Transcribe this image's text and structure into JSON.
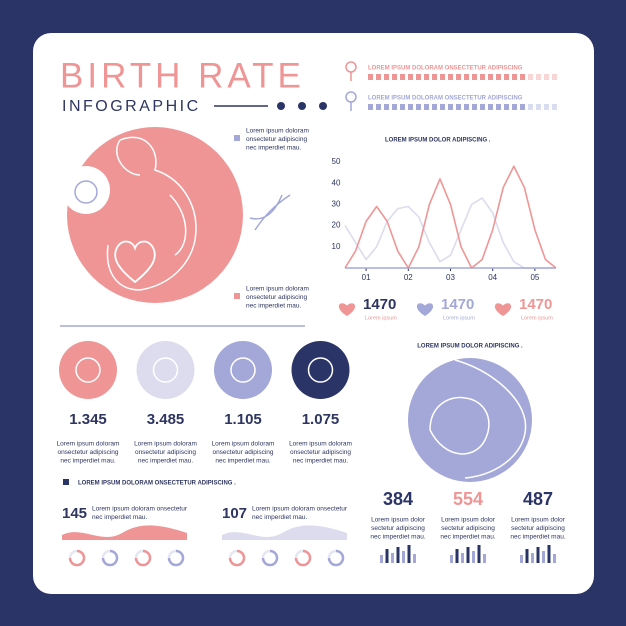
{
  "header": {
    "title": "BIRTH RATE",
    "subtitle": "INFOGRAPHIC"
  },
  "legend": [
    {
      "text": "LOREM IPSUM DOLORAM ONSECTETUR ADIPISCING",
      "color": "#ef9595"
    },
    {
      "text": "LOREM IPSUM DOLORAM ONSECTETUR ADIPISCING",
      "color": "#a3a8d8"
    }
  ],
  "notes": [
    {
      "lines": [
        "Lorem ipsum doloram",
        "onsectetur adipiscing",
        "nec imperdiet mau."
      ],
      "color": "#a3a8d8"
    },
    {
      "lines": [
        "Lorem ipsum doloram",
        "onsectetur adipiscing",
        "nec imperdiet mau."
      ],
      "color": "#ef9595"
    }
  ],
  "chart_data": {
    "type": "line",
    "title": "LOREM IPSUM DOLOR ADIPISCING .",
    "x": [
      0.5,
      0.75,
      1.0,
      1.25,
      1.5,
      1.75,
      2.0,
      2.25,
      2.5,
      2.75,
      3.0,
      3.25,
      3.5,
      3.75,
      4.0,
      4.25,
      4.5,
      4.75,
      5.0,
      5.25,
      5.5
    ],
    "series": [
      {
        "color": "#dcdcee",
        "values": [
          20,
          12,
          4,
          10,
          22,
          28,
          29,
          24,
          12,
          3,
          6,
          18,
          30,
          33,
          26,
          12,
          3,
          0,
          0,
          0,
          0
        ]
      },
      {
        "color": "#ef9595",
        "values": [
          0,
          8,
          22,
          29,
          22,
          8,
          0,
          10,
          30,
          42,
          30,
          10,
          0,
          4,
          18,
          38,
          48,
          38,
          18,
          4,
          0
        ]
      }
    ],
    "xlim": [
      0.5,
      5.5
    ],
    "ylim": [
      0,
      50
    ],
    "yticks": [
      10,
      20,
      30,
      40,
      50
    ],
    "xticks": [
      {
        "value": 1,
        "label": "01"
      },
      {
        "value": 2,
        "label": "02"
      },
      {
        "value": 3,
        "label": "03"
      },
      {
        "value": 4,
        "label": "04"
      },
      {
        "value": 5,
        "label": "05"
      }
    ]
  },
  "hearts": [
    {
      "value": "1470",
      "caption": "Lorem ipsum",
      "color": "#ef9595"
    },
    {
      "value": "1470",
      "caption": "Lorem ipsum",
      "color": "#a3a8d8"
    },
    {
      "value": "1470",
      "caption": "Lorem ipsum",
      "color": "#ef9595"
    }
  ],
  "stats": [
    {
      "value": "1.345",
      "lines": [
        "Lorem ipsum doloram",
        "onsectetur adipiscing",
        "nec imperdiet mau."
      ],
      "color": "#ef9595"
    },
    {
      "value": "3.485",
      "lines": [
        "Lorem ipsum doloram",
        "onsectetur adipiscing",
        "nec imperdiet mau."
      ],
      "color": "#dcdcee"
    },
    {
      "value": "1.105",
      "lines": [
        "Lorem ipsum doloram",
        "onsectetur adipiscing",
        "nec imperdiet mau."
      ],
      "color": "#a3a8d8"
    },
    {
      "value": "1.075",
      "lines": [
        "Lorem ipsum doloram",
        "onsectetur adipiscing",
        "nec imperdiet mau."
      ],
      "color": "#2b3467"
    }
  ],
  "section": {
    "title": "LOREM IPSUM DOLORAM ONSECTETUR ADIPISCING .",
    "items": [
      {
        "value": "145",
        "lines": [
          "Lorem ipsum doloram onsectetur",
          "nec imperdiet mau."
        ]
      },
      {
        "value": "107",
        "lines": [
          "Lorem ipsum doloram onsectetur",
          "nec imperdiet mau."
        ]
      }
    ]
  },
  "right": {
    "title": "LOREM IPSUM DOLOR ADIPISCING .",
    "items": [
      {
        "value": "384",
        "lines": [
          "Lorem ipsum dolor",
          "sectetur adipiscing",
          "nec imperdiet mau."
        ],
        "color": "#2b3467"
      },
      {
        "value": "554",
        "lines": [
          "Lorem ipsum dolor",
          "sectetur adipiscing",
          "nec imperdiet mau."
        ],
        "color": "#ef9595"
      },
      {
        "value": "487",
        "lines": [
          "Lorem ipsum dolor",
          "sectetur adipiscing",
          "nec imperdiet mau."
        ],
        "color": "#2b3467"
      }
    ]
  }
}
